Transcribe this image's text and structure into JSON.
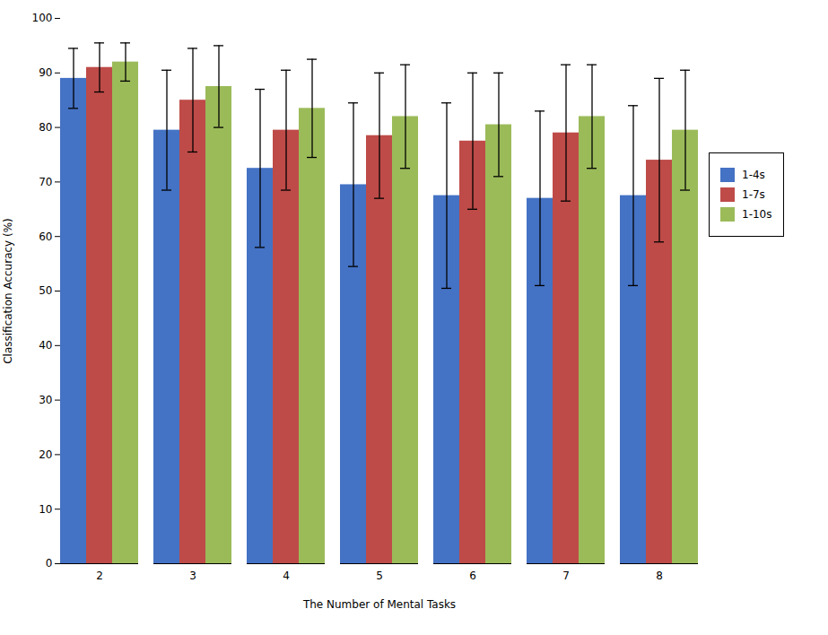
{
  "chart_data": {
    "type": "bar",
    "categories": [
      "2",
      "3",
      "4",
      "5",
      "6",
      "7",
      "8"
    ],
    "series": [
      {
        "name": "1-4s",
        "color": "#4472C4",
        "values": [
          89.0,
          79.5,
          72.5,
          69.5,
          67.5,
          67.0,
          67.5
        ],
        "errors": [
          5.5,
          11.0,
          14.5,
          15.0,
          17.0,
          16.0,
          16.5
        ]
      },
      {
        "name": "1-7s",
        "color": "#BE4B48",
        "values": [
          91.0,
          85.0,
          79.5,
          78.5,
          77.5,
          79.0,
          74.0
        ],
        "errors": [
          4.5,
          9.5,
          11.0,
          11.5,
          12.5,
          12.5,
          15.0
        ]
      },
      {
        "name": "1-10s",
        "color": "#9BBB59",
        "values": [
          92.0,
          87.5,
          83.5,
          82.0,
          80.5,
          82.0,
          79.5
        ],
        "errors": [
          3.5,
          7.5,
          9.0,
          9.5,
          9.5,
          9.5,
          11.0
        ]
      }
    ],
    "xlabel": "The Number of Mental Tasks",
    "ylabel": "Classification Accuracy (%)",
    "ylim": [
      0,
      100
    ],
    "yticks": [
      0,
      10,
      20,
      30,
      40,
      50,
      60,
      70,
      80,
      90,
      100
    ],
    "grid": false,
    "legend": "right"
  }
}
